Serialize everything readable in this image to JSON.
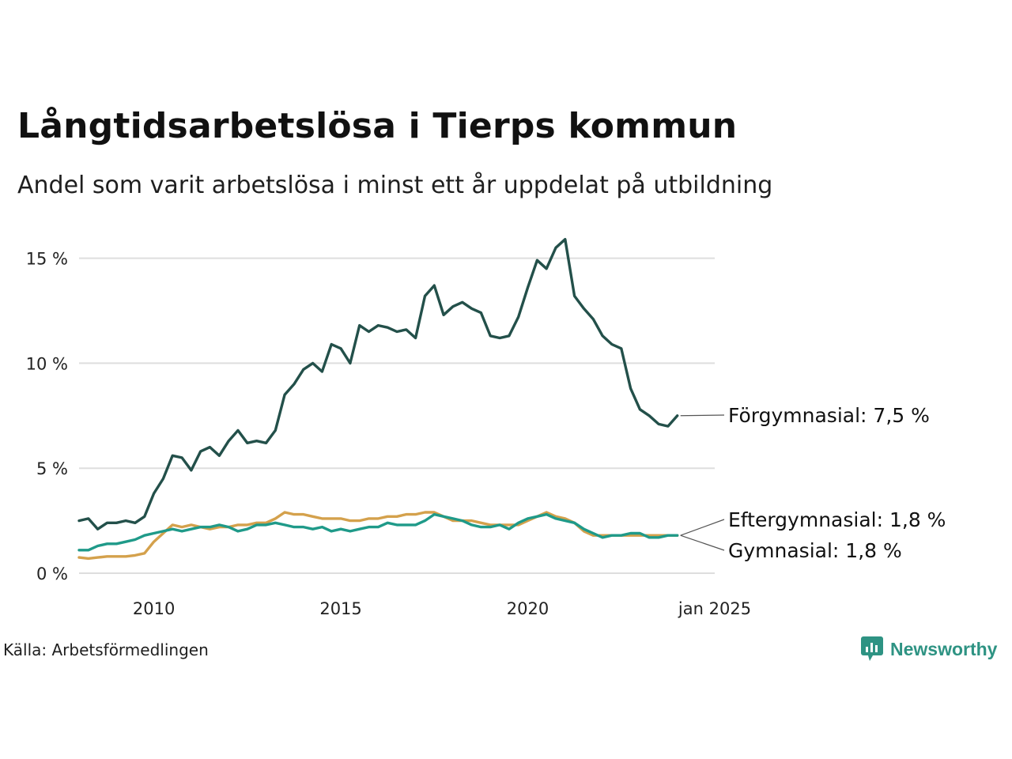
{
  "title": "Långtidsarbetslösa i Tierps kommun",
  "subtitle": "Andel som varit arbetslösa i minst ett år uppdelat på utbildning",
  "source": "Källa: Arbetsförmedlingen",
  "brand": {
    "name": "Newsworthy",
    "icon": "newsworthy-logo-icon"
  },
  "colors": {
    "forgymnasial": "#23504a",
    "eftergymnasial": "#1f9a89",
    "gymnasial": "#d4a14c",
    "grid": "#dedede"
  },
  "chart_data": {
    "type": "line",
    "title": "Långtidsarbetslösa i Tierps kommun",
    "subtitle": "Andel som varit arbetslösa i minst ett år uppdelat på utbildning",
    "xlabel": "",
    "ylabel": "",
    "xlim": [
      "2008-01",
      "2025-01"
    ],
    "ylim": [
      0,
      16
    ],
    "x_ticks": [
      {
        "value": "2010-01",
        "label": "2010"
      },
      {
        "value": "2015-01",
        "label": "2015"
      },
      {
        "value": "2020-01",
        "label": "2020"
      },
      {
        "value": "2025-01",
        "label": "jan 2025"
      }
    ],
    "y_ticks": [
      {
        "value": 0,
        "label": "0 %"
      },
      {
        "value": 5,
        "label": "5 %"
      },
      {
        "value": 10,
        "label": "10 %"
      },
      {
        "value": 15,
        "label": "15 %"
      }
    ],
    "grid": true,
    "legend": "direct labels at line ends (right)",
    "series": [
      {
        "name": "Förgymnasial",
        "end_label": "Förgymnasial: 7,5 %",
        "color_key": "forgymnasial",
        "points": [
          [
            "2008-01",
            2.5
          ],
          [
            "2008-04",
            2.6
          ],
          [
            "2008-07",
            2.1
          ],
          [
            "2008-10",
            2.4
          ],
          [
            "2009-01",
            2.4
          ],
          [
            "2009-04",
            2.5
          ],
          [
            "2009-07",
            2.4
          ],
          [
            "2009-10",
            2.7
          ],
          [
            "2010-01",
            3.8
          ],
          [
            "2010-04",
            4.5
          ],
          [
            "2010-07",
            5.6
          ],
          [
            "2010-10",
            5.5
          ],
          [
            "2011-01",
            4.9
          ],
          [
            "2011-04",
            5.8
          ],
          [
            "2011-07",
            6.0
          ],
          [
            "2011-10",
            5.6
          ],
          [
            "2012-01",
            6.3
          ],
          [
            "2012-04",
            6.8
          ],
          [
            "2012-07",
            6.2
          ],
          [
            "2012-10",
            6.3
          ],
          [
            "2013-01",
            6.2
          ],
          [
            "2013-04",
            6.8
          ],
          [
            "2013-07",
            8.5
          ],
          [
            "2013-10",
            9.0
          ],
          [
            "2014-01",
            9.7
          ],
          [
            "2014-04",
            10.0
          ],
          [
            "2014-07",
            9.6
          ],
          [
            "2014-10",
            10.9
          ],
          [
            "2015-01",
            10.7
          ],
          [
            "2015-04",
            10.0
          ],
          [
            "2015-07",
            11.8
          ],
          [
            "2015-10",
            11.5
          ],
          [
            "2016-01",
            11.8
          ],
          [
            "2016-04",
            11.7
          ],
          [
            "2016-07",
            11.5
          ],
          [
            "2016-10",
            11.6
          ],
          [
            "2017-01",
            11.2
          ],
          [
            "2017-04",
            13.2
          ],
          [
            "2017-07",
            13.7
          ],
          [
            "2017-10",
            12.3
          ],
          [
            "2018-01",
            12.7
          ],
          [
            "2018-04",
            12.9
          ],
          [
            "2018-07",
            12.6
          ],
          [
            "2018-10",
            12.4
          ],
          [
            "2019-01",
            11.3
          ],
          [
            "2019-04",
            11.2
          ],
          [
            "2019-07",
            11.3
          ],
          [
            "2019-10",
            12.2
          ],
          [
            "2020-01",
            13.6
          ],
          [
            "2020-04",
            14.9
          ],
          [
            "2020-07",
            14.5
          ],
          [
            "2020-10",
            15.5
          ],
          [
            "2021-01",
            15.9
          ],
          [
            "2021-04",
            13.2
          ],
          [
            "2021-07",
            12.6
          ],
          [
            "2021-10",
            12.1
          ],
          [
            "2022-01",
            11.3
          ],
          [
            "2022-04",
            10.9
          ],
          [
            "2022-07",
            10.7
          ],
          [
            "2022-10",
            8.8
          ],
          [
            "2023-01",
            7.8
          ],
          [
            "2023-04",
            7.5
          ],
          [
            "2023-07",
            7.1
          ],
          [
            "2023-10",
            7.0
          ],
          [
            "2024-01",
            7.5
          ]
        ]
      },
      {
        "name": "Eftergymnasial",
        "end_label": "Eftergymnasial: 1,8 %",
        "color_key": "eftergymnasial",
        "points": [
          [
            "2008-01",
            1.1
          ],
          [
            "2008-04",
            1.1
          ],
          [
            "2008-07",
            1.3
          ],
          [
            "2008-10",
            1.4
          ],
          [
            "2009-01",
            1.4
          ],
          [
            "2009-04",
            1.5
          ],
          [
            "2009-07",
            1.6
          ],
          [
            "2009-10",
            1.8
          ],
          [
            "2010-01",
            1.9
          ],
          [
            "2010-04",
            2.0
          ],
          [
            "2010-07",
            2.1
          ],
          [
            "2010-10",
            2.0
          ],
          [
            "2011-01",
            2.1
          ],
          [
            "2011-04",
            2.2
          ],
          [
            "2011-07",
            2.2
          ],
          [
            "2011-10",
            2.3
          ],
          [
            "2012-01",
            2.2
          ],
          [
            "2012-04",
            2.0
          ],
          [
            "2012-07",
            2.1
          ],
          [
            "2012-10",
            2.3
          ],
          [
            "2013-01",
            2.3
          ],
          [
            "2013-04",
            2.4
          ],
          [
            "2013-07",
            2.3
          ],
          [
            "2013-10",
            2.2
          ],
          [
            "2014-01",
            2.2
          ],
          [
            "2014-04",
            2.1
          ],
          [
            "2014-07",
            2.2
          ],
          [
            "2014-10",
            2.0
          ],
          [
            "2015-01",
            2.1
          ],
          [
            "2015-04",
            2.0
          ],
          [
            "2015-07",
            2.1
          ],
          [
            "2015-10",
            2.2
          ],
          [
            "2016-01",
            2.2
          ],
          [
            "2016-04",
            2.4
          ],
          [
            "2016-07",
            2.3
          ],
          [
            "2016-10",
            2.3
          ],
          [
            "2017-01",
            2.3
          ],
          [
            "2017-04",
            2.5
          ],
          [
            "2017-07",
            2.8
          ],
          [
            "2017-10",
            2.7
          ],
          [
            "2018-01",
            2.6
          ],
          [
            "2018-04",
            2.5
          ],
          [
            "2018-07",
            2.3
          ],
          [
            "2018-10",
            2.2
          ],
          [
            "2019-01",
            2.2
          ],
          [
            "2019-04",
            2.3
          ],
          [
            "2019-07",
            2.1
          ],
          [
            "2019-10",
            2.4
          ],
          [
            "2020-01",
            2.6
          ],
          [
            "2020-04",
            2.7
          ],
          [
            "2020-07",
            2.8
          ],
          [
            "2020-10",
            2.6
          ],
          [
            "2021-01",
            2.5
          ],
          [
            "2021-04",
            2.4
          ],
          [
            "2021-07",
            2.1
          ],
          [
            "2021-10",
            1.9
          ],
          [
            "2022-01",
            1.7
          ],
          [
            "2022-04",
            1.8
          ],
          [
            "2022-07",
            1.8
          ],
          [
            "2022-10",
            1.9
          ],
          [
            "2023-01",
            1.9
          ],
          [
            "2023-04",
            1.7
          ],
          [
            "2023-07",
            1.7
          ],
          [
            "2023-10",
            1.8
          ],
          [
            "2024-01",
            1.8
          ]
        ]
      },
      {
        "name": "Gymnasial",
        "end_label": "Gymnasial: 1,8 %",
        "color_key": "gymnasial",
        "points": [
          [
            "2008-01",
            0.75
          ],
          [
            "2008-04",
            0.7
          ],
          [
            "2008-07",
            0.75
          ],
          [
            "2008-10",
            0.8
          ],
          [
            "2009-01",
            0.8
          ],
          [
            "2009-04",
            0.8
          ],
          [
            "2009-07",
            0.85
          ],
          [
            "2009-10",
            0.95
          ],
          [
            "2010-01",
            1.5
          ],
          [
            "2010-04",
            1.9
          ],
          [
            "2010-07",
            2.3
          ],
          [
            "2010-10",
            2.2
          ],
          [
            "2011-01",
            2.3
          ],
          [
            "2011-04",
            2.2
          ],
          [
            "2011-07",
            2.1
          ],
          [
            "2011-10",
            2.2
          ],
          [
            "2012-01",
            2.2
          ],
          [
            "2012-04",
            2.3
          ],
          [
            "2012-07",
            2.3
          ],
          [
            "2012-10",
            2.4
          ],
          [
            "2013-01",
            2.4
          ],
          [
            "2013-04",
            2.6
          ],
          [
            "2013-07",
            2.9
          ],
          [
            "2013-10",
            2.8
          ],
          [
            "2014-01",
            2.8
          ],
          [
            "2014-04",
            2.7
          ],
          [
            "2014-07",
            2.6
          ],
          [
            "2014-10",
            2.6
          ],
          [
            "2015-01",
            2.6
          ],
          [
            "2015-04",
            2.5
          ],
          [
            "2015-07",
            2.5
          ],
          [
            "2015-10",
            2.6
          ],
          [
            "2016-01",
            2.6
          ],
          [
            "2016-04",
            2.7
          ],
          [
            "2016-07",
            2.7
          ],
          [
            "2016-10",
            2.8
          ],
          [
            "2017-01",
            2.8
          ],
          [
            "2017-04",
            2.9
          ],
          [
            "2017-07",
            2.9
          ],
          [
            "2017-10",
            2.7
          ],
          [
            "2018-01",
            2.5
          ],
          [
            "2018-04",
            2.5
          ],
          [
            "2018-07",
            2.5
          ],
          [
            "2018-10",
            2.4
          ],
          [
            "2019-01",
            2.3
          ],
          [
            "2019-04",
            2.3
          ],
          [
            "2019-07",
            2.3
          ],
          [
            "2019-10",
            2.3
          ],
          [
            "2020-01",
            2.5
          ],
          [
            "2020-04",
            2.7
          ],
          [
            "2020-07",
            2.9
          ],
          [
            "2020-10",
            2.7
          ],
          [
            "2021-01",
            2.6
          ],
          [
            "2021-04",
            2.4
          ],
          [
            "2021-07",
            2.0
          ],
          [
            "2021-10",
            1.8
          ],
          [
            "2022-01",
            1.8
          ],
          [
            "2022-04",
            1.8
          ],
          [
            "2022-07",
            1.8
          ],
          [
            "2022-10",
            1.8
          ],
          [
            "2023-01",
            1.8
          ],
          [
            "2023-04",
            1.8
          ],
          [
            "2023-07",
            1.8
          ],
          [
            "2023-10",
            1.8
          ],
          [
            "2024-01",
            1.8
          ]
        ]
      }
    ]
  }
}
